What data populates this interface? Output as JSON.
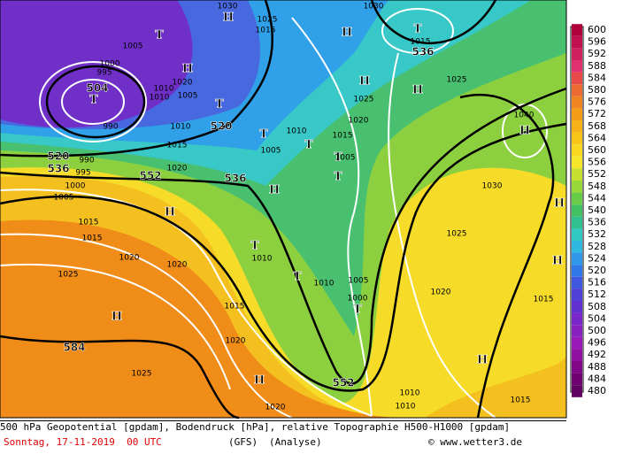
{
  "map": {
    "labels_high_low": [
      "H",
      "H",
      "H",
      "H",
      "H",
      "H",
      "H",
      "H",
      "H",
      "H",
      "H",
      "H",
      "H",
      "T",
      "T",
      "T",
      "T",
      "T",
      "T",
      "T",
      "T",
      "T",
      "T",
      "T"
    ],
    "labels_geopotential": [
      "504",
      "520",
      "520",
      "536",
      "552",
      "536",
      "536",
      "552",
      "584"
    ],
    "labels_pressure": [
      "1030",
      "1025",
      "1015",
      "1030",
      "1015",
      "1005",
      "1000",
      "995",
      "1020",
      "1010",
      "1010",
      "1005",
      "990",
      "1010",
      "1015",
      "1005",
      "1010",
      "1015",
      "1025",
      "1020",
      "1025",
      "1040",
      "1005",
      "1020",
      "1000",
      "1005",
      "1015",
      "1015",
      "1030",
      "1025",
      "1020",
      "1020",
      "1010",
      "1025",
      "1010",
      "1005",
      "1000",
      "1020",
      "1015",
      "1015",
      "1020",
      "1025",
      "1010",
      "1010",
      "1015",
      "1020",
      "990",
      "995"
    ]
  },
  "scale": {
    "values": [
      600,
      596,
      592,
      588,
      584,
      580,
      576,
      572,
      568,
      564,
      560,
      556,
      552,
      548,
      544,
      540,
      536,
      532,
      528,
      524,
      520,
      516,
      512,
      508,
      504,
      500,
      496,
      492,
      488,
      484,
      480
    ],
    "colors": [
      "#b0003c",
      "#c01050",
      "#d02060",
      "#e03070",
      "#e84a4a",
      "#ec6a30",
      "#f08420",
      "#f49c18",
      "#f6b018",
      "#f8c418",
      "#fad820",
      "#f4e628",
      "#c8e030",
      "#98d838",
      "#68cc48",
      "#40c060",
      "#30c090",
      "#30c8c0",
      "#30b8e0",
      "#3098e8",
      "#3078e8",
      "#4058e0",
      "#5040d8",
      "#6030d0",
      "#7828c8",
      "#8820c0",
      "#9818b8",
      "#9010a0",
      "#800888",
      "#700070",
      "#600060"
    ]
  },
  "footer": {
    "description": "500 hPa Geopotential [gpdam], Bodendruck [hPa], relative Topographie H500-H1000 [gpdam]",
    "date": "Sonntag, 17-11-2019  00 UTC",
    "model": "(GFS)",
    "run": "(Analyse)",
    "source": "© www.wetter3.de"
  }
}
